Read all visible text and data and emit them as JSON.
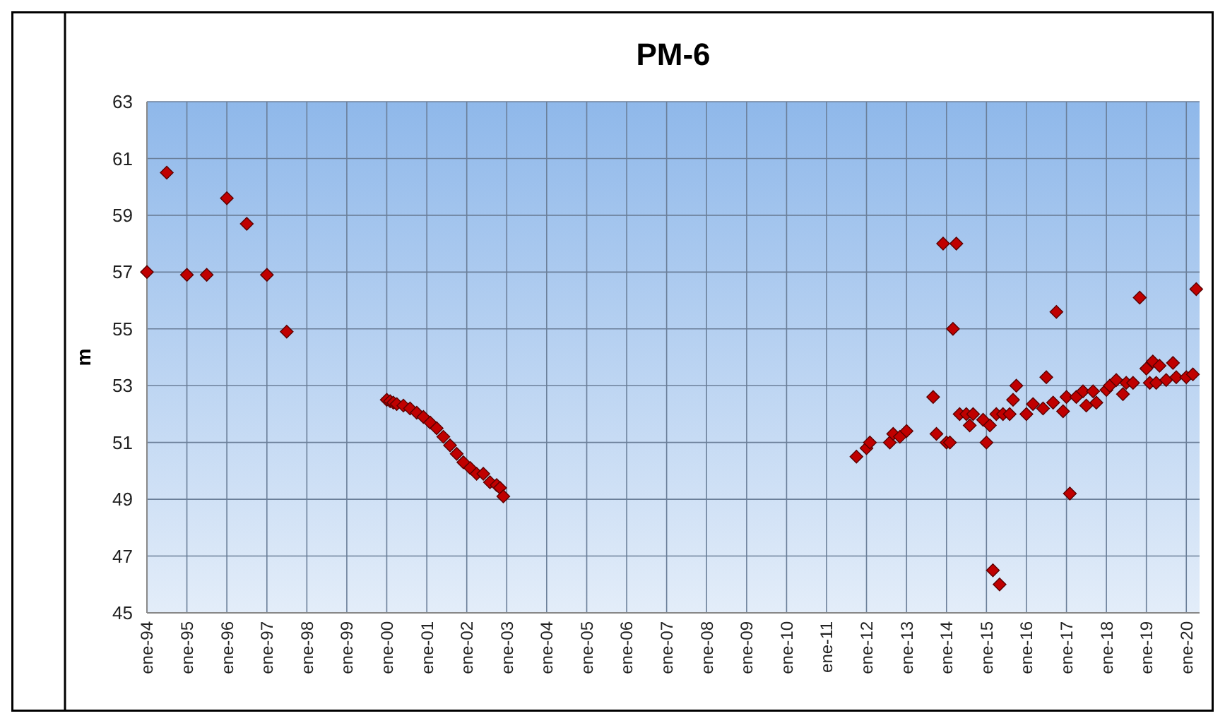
{
  "chart_data": {
    "type": "scatter",
    "title": "PM-6",
    "ylabel": "m",
    "marker": "diamond",
    "grid": true,
    "xlim": [
      "1994-01",
      "2020-05"
    ],
    "xticks": [
      {
        "value": "1994-01",
        "label": "ene-94"
      },
      {
        "value": "1995-01",
        "label": "ene-95"
      },
      {
        "value": "1996-01",
        "label": "ene-96"
      },
      {
        "value": "1997-01",
        "label": "ene-97"
      },
      {
        "value": "1998-01",
        "label": "ene-98"
      },
      {
        "value": "1999-01",
        "label": "ene-99"
      },
      {
        "value": "2000-01",
        "label": "ene-00"
      },
      {
        "value": "2001-01",
        "label": "ene-01"
      },
      {
        "value": "2002-01",
        "label": "ene-02"
      },
      {
        "value": "2003-01",
        "label": "ene-03"
      },
      {
        "value": "2004-01",
        "label": "ene-04"
      },
      {
        "value": "2005-01",
        "label": "ene-05"
      },
      {
        "value": "2006-01",
        "label": "ene-06"
      },
      {
        "value": "2007-01",
        "label": "ene-07"
      },
      {
        "value": "2008-01",
        "label": "ene-08"
      },
      {
        "value": "2009-01",
        "label": "ene-09"
      },
      {
        "value": "2010-01",
        "label": "ene-10"
      },
      {
        "value": "2011-01",
        "label": "ene-11"
      },
      {
        "value": "2012-01",
        "label": "ene-12"
      },
      {
        "value": "2013-01",
        "label": "ene-13"
      },
      {
        "value": "2014-01",
        "label": "ene-14"
      },
      {
        "value": "2015-01",
        "label": "ene-15"
      },
      {
        "value": "2016-01",
        "label": "ene-16"
      },
      {
        "value": "2017-01",
        "label": "ene-17"
      },
      {
        "value": "2018-01",
        "label": "ene-18"
      },
      {
        "value": "2019-01",
        "label": "ene-19"
      },
      {
        "value": "2020-01",
        "label": "ene-20"
      }
    ],
    "ylim": [
      45,
      63
    ],
    "yticks": [
      45,
      47,
      49,
      51,
      53,
      55,
      57,
      59,
      61,
      63
    ],
    "series": [
      {
        "color": "#c00000",
        "x": [
          "1994-01",
          "1994-07",
          "1995-01",
          "1995-07",
          "1996-01",
          "1996-07",
          "1997-01",
          "1997-07",
          "2000-01",
          "2000-02",
          "2000-03",
          "2000-04",
          "2000-06",
          "2000-08",
          "2000-10",
          "2000-12",
          "2001-02",
          "2001-04",
          "2001-06",
          "2001-08",
          "2001-10",
          "2001-12",
          "2002-02",
          "2002-04",
          "2002-06",
          "2002-08",
          "2002-10",
          "2002-11",
          "2002-12",
          "2011-10",
          "2012-01",
          "2012-02",
          "2012-08",
          "2012-09",
          "2012-11",
          "2013-01",
          "2013-09",
          "2013-10",
          "2013-12",
          "2014-01",
          "2014-02",
          "2014-03",
          "2014-04",
          "2014-05",
          "2014-07",
          "2014-08",
          "2014-09",
          "2014-12",
          "2015-01",
          "2015-02",
          "2015-03",
          "2015-04",
          "2015-05",
          "2015-06",
          "2015-08",
          "2015-09",
          "2015-10",
          "2016-01",
          "2016-03",
          "2016-06",
          "2016-07",
          "2016-09",
          "2016-10",
          "2016-12",
          "2017-01",
          "2017-02",
          "2017-04",
          "2017-06",
          "2017-07",
          "2017-09",
          "2017-10",
          "2018-01",
          "2018-02",
          "2018-04",
          "2018-06",
          "2018-07",
          "2018-09",
          "2018-11",
          "2019-01",
          "2019-02",
          "2019-03",
          "2019-04",
          "2019-05",
          "2019-07",
          "2019-09",
          "2019-10",
          "2020-01",
          "2020-03",
          "2020-04"
        ],
        "values": [
          57.0,
          60.5,
          56.9,
          56.9,
          59.6,
          58.7,
          56.9,
          54.9,
          52.5,
          52.45,
          52.4,
          52.35,
          52.3,
          52.2,
          52.05,
          51.9,
          51.7,
          51.5,
          51.2,
          50.9,
          50.6,
          50.3,
          50.1,
          49.9,
          49.9,
          49.6,
          49.5,
          49.4,
          49.1,
          50.5,
          50.8,
          51.0,
          51.0,
          51.3,
          51.2,
          51.4,
          52.6,
          51.3,
          58.0,
          51.0,
          51.0,
          55.0,
          58.0,
          52.0,
          52.0,
          51.6,
          52.0,
          51.8,
          51.0,
          51.6,
          46.5,
          52.0,
          46.0,
          52.0,
          52.0,
          52.5,
          53.0,
          52.0,
          52.35,
          52.2,
          53.3,
          52.4,
          55.6,
          52.1,
          52.6,
          49.2,
          52.6,
          52.8,
          52.3,
          52.8,
          52.4,
          52.85,
          53.0,
          53.2,
          52.7,
          53.1,
          53.1,
          56.1,
          53.6,
          53.1,
          53.85,
          53.1,
          53.7,
          53.2,
          53.8,
          53.3,
          53.3,
          53.4,
          56.4
        ]
      }
    ]
  }
}
